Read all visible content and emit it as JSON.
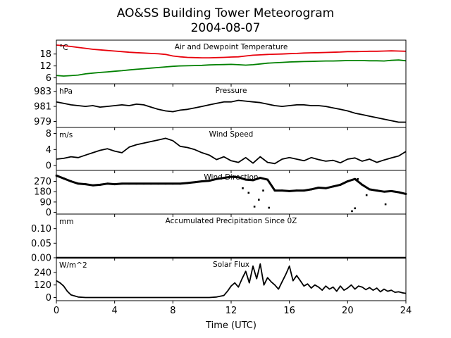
{
  "figure": {
    "title_line1": "AO&SS Building Tower Meteorogram",
    "title_line2": "2004-08-07",
    "xlabel": "Time (UTC)",
    "xlim": [
      0,
      24
    ],
    "xticks": [
      0,
      4,
      8,
      12,
      16,
      20,
      24
    ]
  },
  "colors": {
    "axes": "#000000",
    "temperature": "#e8000b",
    "dewpoint": "#008000",
    "series": "#000000"
  },
  "chart_data": [
    {
      "type": "line",
      "title": "Air and Dewpoint Temperature",
      "unit": "°C",
      "ylim": [
        3,
        25
      ],
      "yticks": [
        6,
        12,
        18
      ],
      "series": [
        {
          "role": "air",
          "x": [
            0,
            0.5,
            1,
            1.5,
            2,
            2.5,
            3,
            3.5,
            4,
            4.5,
            5,
            5.5,
            6,
            6.5,
            7,
            7.5,
            8,
            8.5,
            9,
            9.5,
            10,
            10.5,
            11,
            11.5,
            12,
            12.5,
            13,
            13.5,
            14,
            14.5,
            15,
            15.5,
            16,
            16.5,
            17,
            17.5,
            18,
            18.5,
            19,
            19.5,
            20,
            20.5,
            21,
            21.5,
            22,
            22.5,
            23,
            23.5,
            24
          ],
          "values": [
            22.5,
            22.2,
            21.8,
            21.3,
            20.9,
            20.4,
            20.1,
            19.8,
            19.5,
            19.2,
            18.9,
            18.7,
            18.5,
            18.3,
            18.1,
            17.8,
            17.0,
            16.6,
            16.3,
            16.2,
            16.1,
            16.1,
            16.2,
            16.3,
            16.5,
            16.6,
            17.0,
            17.4,
            17.6,
            17.8,
            17.9,
            18.0,
            18.2,
            18.3,
            18.5,
            18.6,
            18.7,
            18.8,
            18.9,
            19.0,
            19.2,
            19.2,
            19.3,
            19.4,
            19.4,
            19.5,
            19.6,
            19.5,
            19.4
          ]
        },
        {
          "role": "dewpoint",
          "x": [
            0,
            0.5,
            1,
            1.5,
            2,
            2.5,
            3,
            3.5,
            4,
            4.5,
            5,
            5.5,
            6,
            6.5,
            7,
            7.5,
            8,
            8.5,
            9,
            9.5,
            10,
            10.5,
            11,
            11.5,
            12,
            12.5,
            13,
            13.5,
            14,
            14.5,
            15,
            15.5,
            16,
            16.5,
            17,
            17.5,
            18,
            18.5,
            19,
            19.5,
            20,
            20.5,
            21,
            21.5,
            22,
            22.5,
            23,
            23.5,
            24
          ],
          "values": [
            7.2,
            6.9,
            7.1,
            7.4,
            8.0,
            8.4,
            8.7,
            9.0,
            9.3,
            9.6,
            10.0,
            10.3,
            10.6,
            10.9,
            11.2,
            11.5,
            11.8,
            12.0,
            12.1,
            12.2,
            12.3,
            12.5,
            12.6,
            12.7,
            12.8,
            12.6,
            12.4,
            12.6,
            13.0,
            13.4,
            13.6,
            13.8,
            14.0,
            14.1,
            14.2,
            14.3,
            14.4,
            14.5,
            14.5,
            14.6,
            14.7,
            14.7,
            14.7,
            14.6,
            14.6,
            14.5,
            14.8,
            15.0,
            14.6
          ]
        }
      ]
    },
    {
      "type": "line",
      "title": "Pressure",
      "unit": "hPa",
      "ylim": [
        978.2,
        984.0
      ],
      "yticks": [
        979,
        981,
        983
      ],
      "series": [
        {
          "role": "pressure",
          "x": [
            0,
            0.5,
            1,
            1.5,
            2,
            2.5,
            3,
            3.5,
            4,
            4.5,
            5,
            5.5,
            6,
            6.5,
            7,
            7.5,
            8,
            8.5,
            9,
            9.5,
            10,
            10.5,
            11,
            11.5,
            12,
            12.5,
            13,
            13.5,
            14,
            14.5,
            15,
            15.5,
            16,
            16.5,
            17,
            17.5,
            18,
            18.5,
            19,
            19.5,
            20,
            20.5,
            21,
            21.5,
            22,
            22.5,
            23,
            23.5,
            24
          ],
          "values": [
            981.6,
            981.4,
            981.2,
            981.1,
            981.0,
            981.1,
            980.9,
            981.0,
            981.1,
            981.2,
            981.1,
            981.3,
            981.2,
            980.9,
            980.6,
            980.4,
            980.3,
            980.5,
            980.6,
            980.8,
            981.0,
            981.2,
            981.4,
            981.6,
            981.6,
            981.8,
            981.7,
            981.6,
            981.5,
            981.3,
            981.1,
            981.0,
            981.1,
            981.2,
            981.2,
            981.1,
            981.1,
            981.0,
            980.8,
            980.6,
            980.4,
            980.1,
            979.9,
            979.7,
            979.5,
            979.3,
            979.1,
            978.9,
            978.9
          ]
        }
      ]
    },
    {
      "type": "line",
      "title": "Wind Speed",
      "unit": "m/s",
      "ylim": [
        -1.2,
        9.5
      ],
      "yticks": [
        0,
        4,
        8
      ],
      "series": [
        {
          "role": "wind_speed",
          "x": [
            0,
            0.5,
            1,
            1.5,
            2,
            2.5,
            3,
            3.5,
            4,
            4.5,
            5,
            5.5,
            6,
            6.5,
            7,
            7.5,
            8,
            8.5,
            9,
            9.5,
            10,
            10.5,
            11,
            11.5,
            12,
            12.5,
            13,
            13.5,
            14,
            14.5,
            15,
            15.5,
            16,
            16.5,
            17,
            17.5,
            18,
            18.5,
            19,
            19.5,
            20,
            20.5,
            21,
            21.5,
            22,
            22.5,
            23,
            23.5,
            24
          ],
          "values": [
            1.6,
            1.8,
            2.2,
            2.0,
            2.6,
            3.2,
            3.8,
            4.2,
            3.6,
            3.2,
            4.6,
            5.2,
            5.6,
            6.0,
            6.4,
            6.8,
            6.2,
            4.8,
            4.5,
            4.0,
            3.2,
            2.6,
            1.5,
            2.2,
            1.2,
            0.8,
            2.0,
            0.6,
            2.2,
            0.8,
            0.5,
            1.6,
            2.0,
            1.6,
            1.2,
            2.0,
            1.5,
            1.1,
            1.3,
            0.7,
            1.6,
            1.9,
            1.1,
            1.6,
            0.8,
            1.4,
            1.9,
            2.4,
            3.5
          ]
        }
      ]
    },
    {
      "type": "scatter",
      "title": "Wind Direction",
      "unit": "",
      "ylim": [
        -15,
        365
      ],
      "yticks": [
        0,
        90,
        180,
        270
      ],
      "series": [
        {
          "role": "wind_direction",
          "x": [
            0,
            0.5,
            1,
            1.5,
            2,
            2.5,
            3,
            3.5,
            4,
            4.5,
            5,
            5.5,
            6,
            6.5,
            7,
            7.5,
            8,
            8.5,
            9,
            9.5,
            10,
            10.5,
            11,
            11.5,
            12,
            12.5,
            13,
            13.5,
            14,
            14.5,
            15,
            15.5,
            16,
            16.5,
            17,
            17.5,
            18,
            18.5,
            19,
            19.5,
            20,
            20.5,
            21,
            21.5,
            22,
            22.5,
            23,
            23.5,
            24,
            12.8,
            13.2,
            13.6,
            13.9,
            14.2,
            14.6,
            20.3,
            20.5,
            20.7,
            21.3,
            22.6
          ],
          "values": [
            320,
            295,
            270,
            250,
            245,
            235,
            240,
            250,
            245,
            250,
            250,
            250,
            250,
            250,
            250,
            250,
            250,
            250,
            255,
            262,
            270,
            275,
            290,
            300,
            310,
            305,
            285,
            280,
            300,
            285,
            190,
            190,
            185,
            190,
            190,
            200,
            215,
            210,
            225,
            240,
            270,
            290,
            240,
            200,
            190,
            180,
            185,
            175,
            160,
            210,
            170,
            50,
            110,
            190,
            40,
            10,
            35,
            290,
            150,
            70
          ]
        }
      ]
    },
    {
      "type": "area",
      "title": "Accumulated Precipitation Since 0Z",
      "unit": "mm",
      "ylim": [
        0,
        0.15
      ],
      "yticks": [
        "0.00",
        "0.05",
        "0.10"
      ],
      "series": [
        {
          "role": "precipitation",
          "x": [
            0,
            24
          ],
          "values": [
            0,
            0
          ]
        }
      ]
    },
    {
      "type": "line",
      "title": "Solar Flux",
      "unit": "W/m^2",
      "ylim": [
        -30,
        380
      ],
      "yticks": [
        0,
        120,
        240
      ],
      "series": [
        {
          "role": "solar_flux",
          "x": [
            0,
            0.25,
            0.5,
            0.75,
            1,
            1.5,
            2,
            3,
            4,
            5,
            6,
            7,
            8,
            9,
            10,
            10.5,
            11,
            11.5,
            11.75,
            12,
            12.25,
            12.5,
            12.75,
            13,
            13.25,
            13.5,
            13.75,
            14,
            14.25,
            14.5,
            14.75,
            15,
            15.25,
            15.5,
            15.75,
            16,
            16.25,
            16.5,
            16.75,
            17,
            17.25,
            17.5,
            17.75,
            18,
            18.25,
            18.5,
            18.75,
            19,
            19.25,
            19.5,
            19.75,
            20,
            20.25,
            20.5,
            20.75,
            21,
            21.25,
            21.5,
            21.75,
            22,
            22.25,
            22.5,
            22.75,
            23,
            23.25,
            23.5,
            23.75,
            24
          ],
          "values": [
            160,
            140,
            110,
            60,
            25,
            5,
            0,
            0,
            0,
            0,
            0,
            0,
            0,
            0,
            0,
            0,
            5,
            20,
            60,
            110,
            140,
            100,
            180,
            250,
            140,
            300,
            180,
            320,
            120,
            190,
            150,
            120,
            80,
            150,
            220,
            300,
            160,
            210,
            160,
            110,
            130,
            90,
            120,
            100,
            70,
            110,
            80,
            100,
            60,
            110,
            70,
            90,
            120,
            80,
            110,
            100,
            75,
            95,
            70,
            90,
            55,
            80,
            60,
            70,
            50,
            55,
            45,
            40
          ]
        }
      ]
    }
  ]
}
